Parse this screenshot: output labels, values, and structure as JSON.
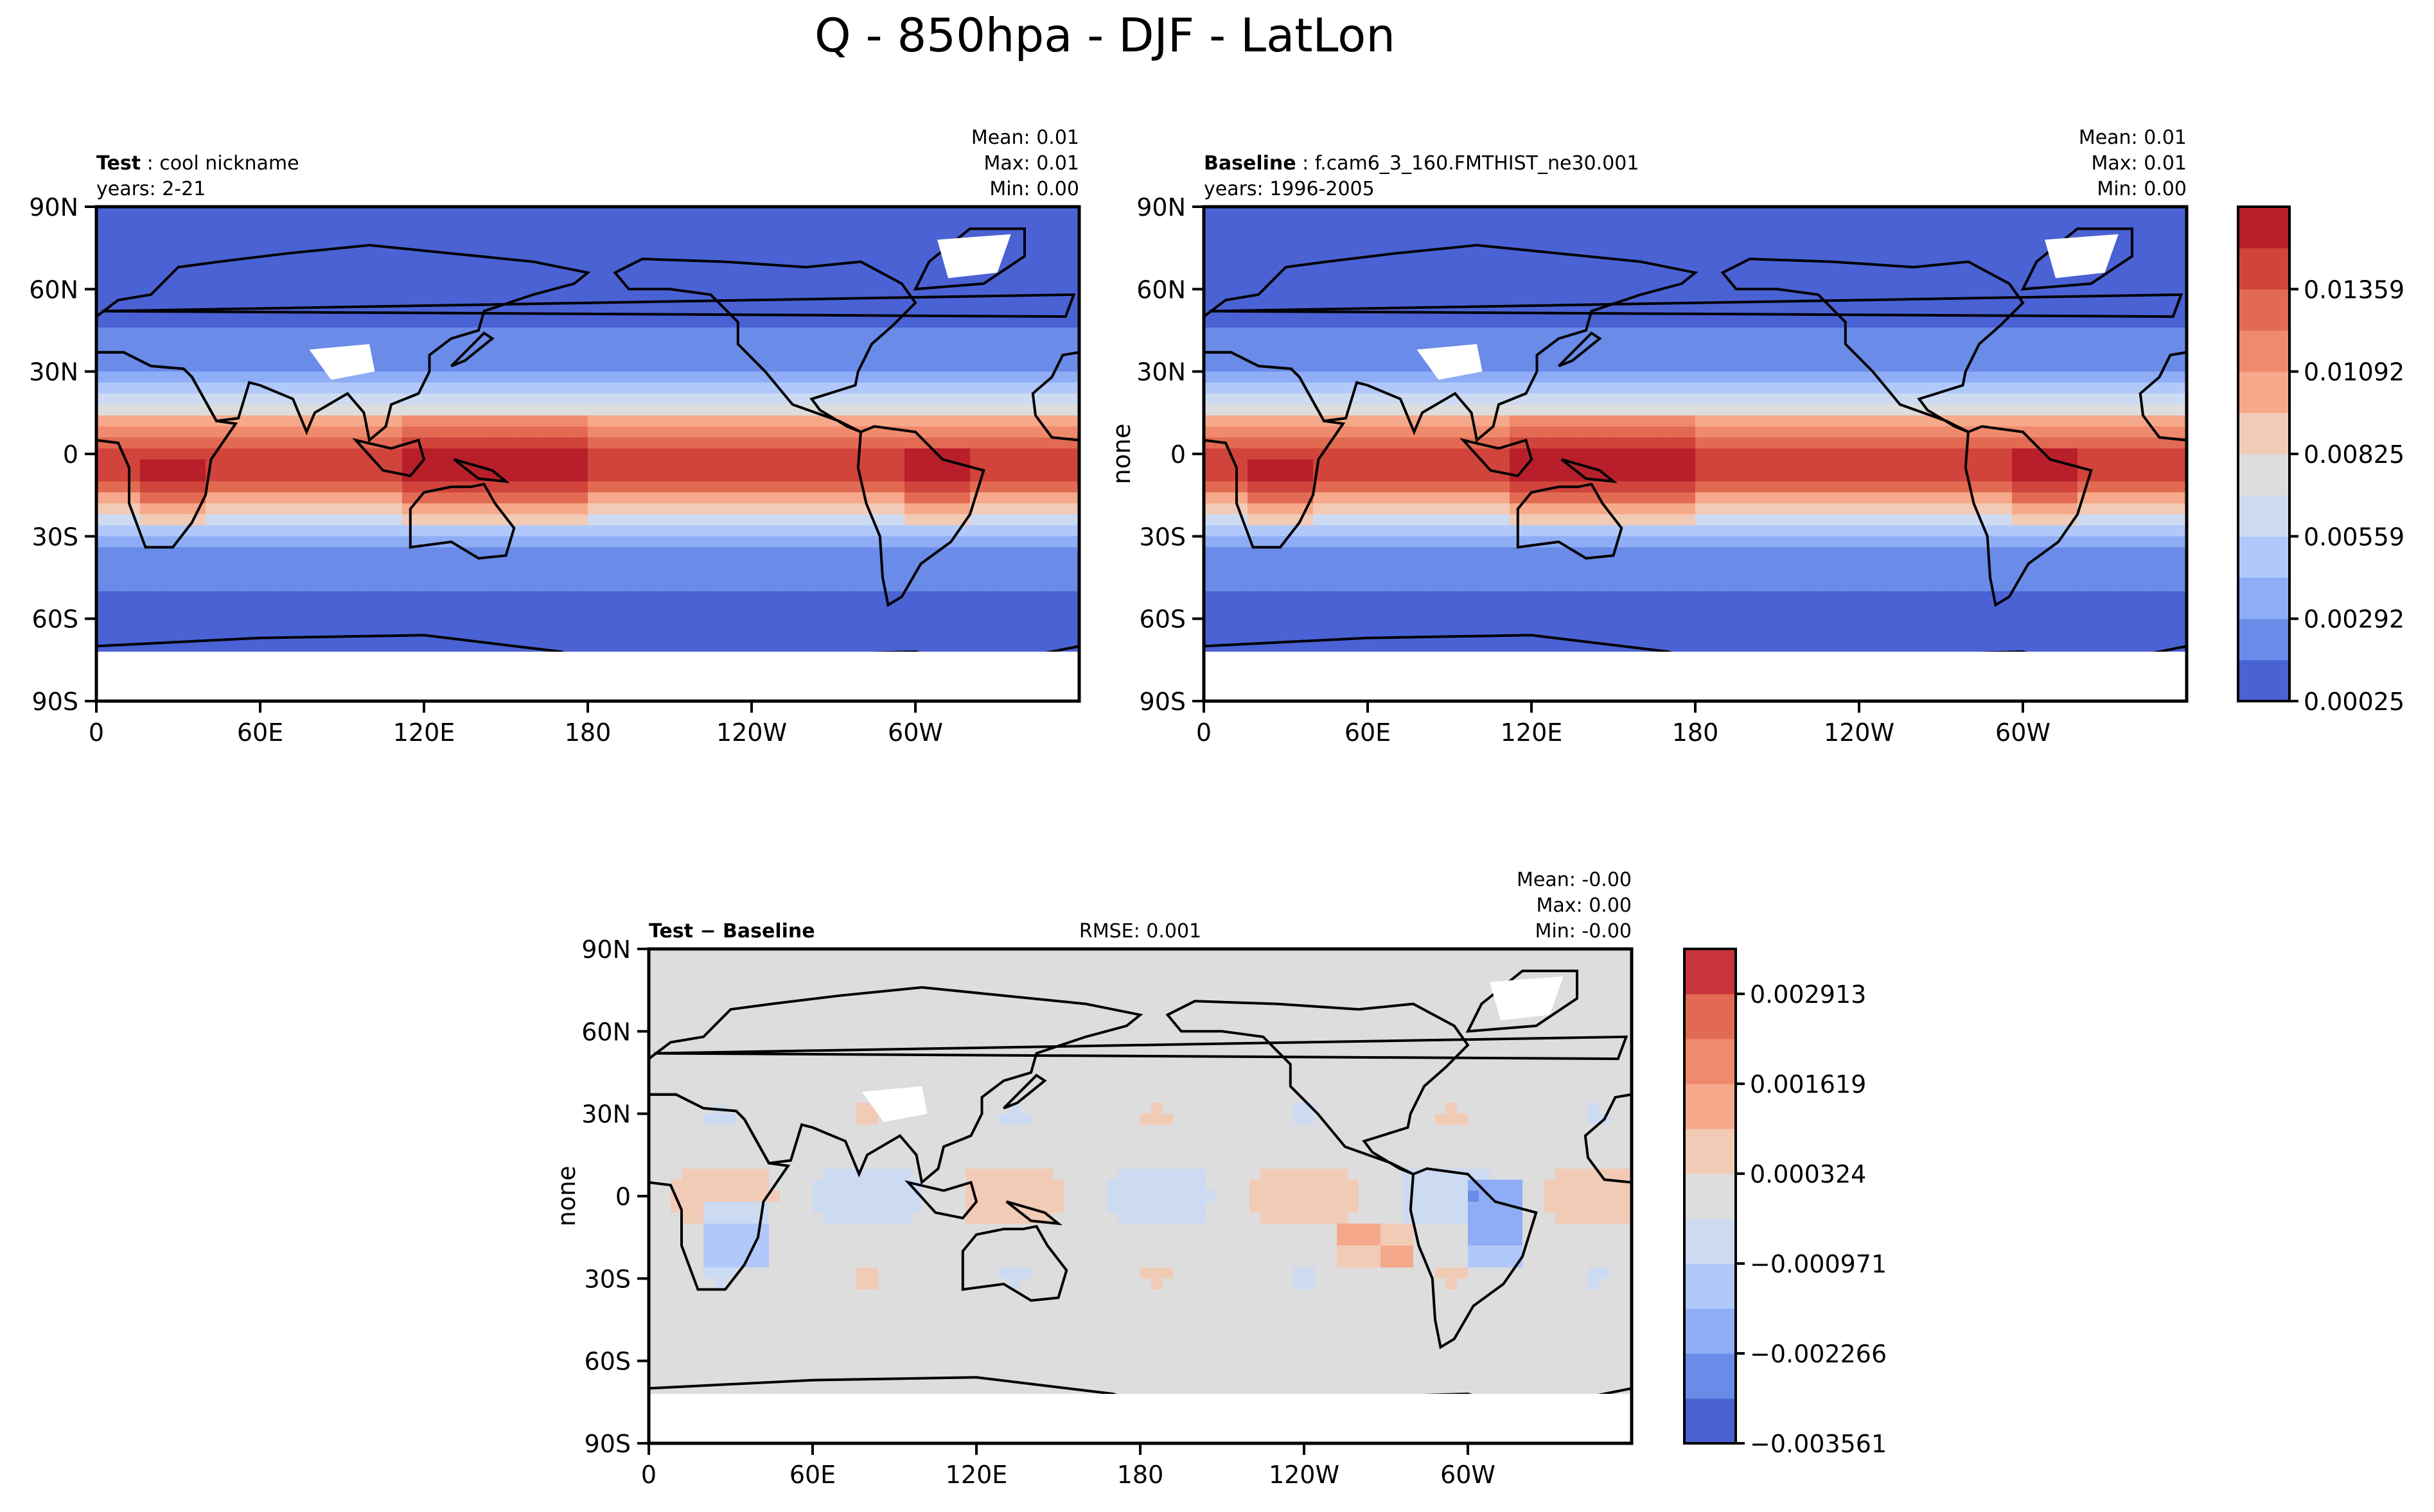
{
  "figure": {
    "title": "Q - 850hpa - DJF - LatLon"
  },
  "chart_data": [
    {
      "type": "heatmap",
      "panel": "test",
      "name_bold": "Test",
      "name_text": "cool nickname",
      "years": "years: 2-21",
      "stats": {
        "mean": "0.01",
        "max": "0.01",
        "min": "0.00"
      },
      "ylabel": "",
      "x_ticks": [
        "0",
        "60E",
        "120E",
        "180",
        "120W",
        "60W"
      ],
      "y_ticks": [
        "90N",
        "60N",
        "30N",
        "0",
        "30S",
        "60S",
        "90S"
      ],
      "xlim": [
        0,
        360
      ],
      "ylim": [
        -90,
        90
      ]
    },
    {
      "type": "heatmap",
      "panel": "baseline",
      "name_bold": "Baseline",
      "name_text": "f.cam6_3_160.FMTHIST_ne30.001",
      "years": "years: 1996-2005",
      "stats": {
        "mean": "0.01",
        "max": "0.01",
        "min": "0.00"
      },
      "ylabel": "none",
      "x_ticks": [
        "0",
        "60E",
        "120E",
        "180",
        "120W",
        "60W"
      ],
      "y_ticks": [
        "90N",
        "60N",
        "30N",
        "0",
        "30S",
        "60S",
        "90S"
      ],
      "xlim": [
        0,
        360
      ],
      "ylim": [
        -90,
        90
      ],
      "colorbar": {
        "tick_labels": [
          "0.00025",
          "0.00292",
          "0.00559",
          "0.00825",
          "0.01092",
          "0.01359"
        ],
        "levels": 12,
        "colors": [
          "#4a62d4",
          "#6a8be8",
          "#8eadf6",
          "#b1c9fa",
          "#cddbf2",
          "#dddddd",
          "#f2cbb7",
          "#f6a98a",
          "#f08a6c",
          "#e26a52",
          "#d0443c",
          "#b81f2a"
        ]
      }
    },
    {
      "type": "heatmap",
      "panel": "difference",
      "name_bold": "Test − Baseline",
      "rmse": "RMSE: 0.001",
      "stats": {
        "mean": "-0.00",
        "max": " 0.00",
        "min": "-0.00"
      },
      "ylabel": "none",
      "x_ticks": [
        "0",
        "60E",
        "120E",
        "180",
        "120W",
        "60W"
      ],
      "y_ticks": [
        "90N",
        "60N",
        "30N",
        "0",
        "30S",
        "60S",
        "90S"
      ],
      "xlim": [
        0,
        360
      ],
      "ylim": [
        -90,
        90
      ],
      "colorbar": {
        "tick_labels": [
          "−0.003561",
          "−0.002266",
          "−0.000971",
          "0.000324",
          "0.001619",
          "0.002913"
        ],
        "levels": 11,
        "colors": [
          "#4a62d4",
          "#6a8be8",
          "#8eadf6",
          "#b1c9fa",
          "#cddbf2",
          "#dddddd",
          "#f2cbb7",
          "#f6a98a",
          "#f08a6c",
          "#e26a52",
          "#c8343a"
        ]
      }
    }
  ]
}
